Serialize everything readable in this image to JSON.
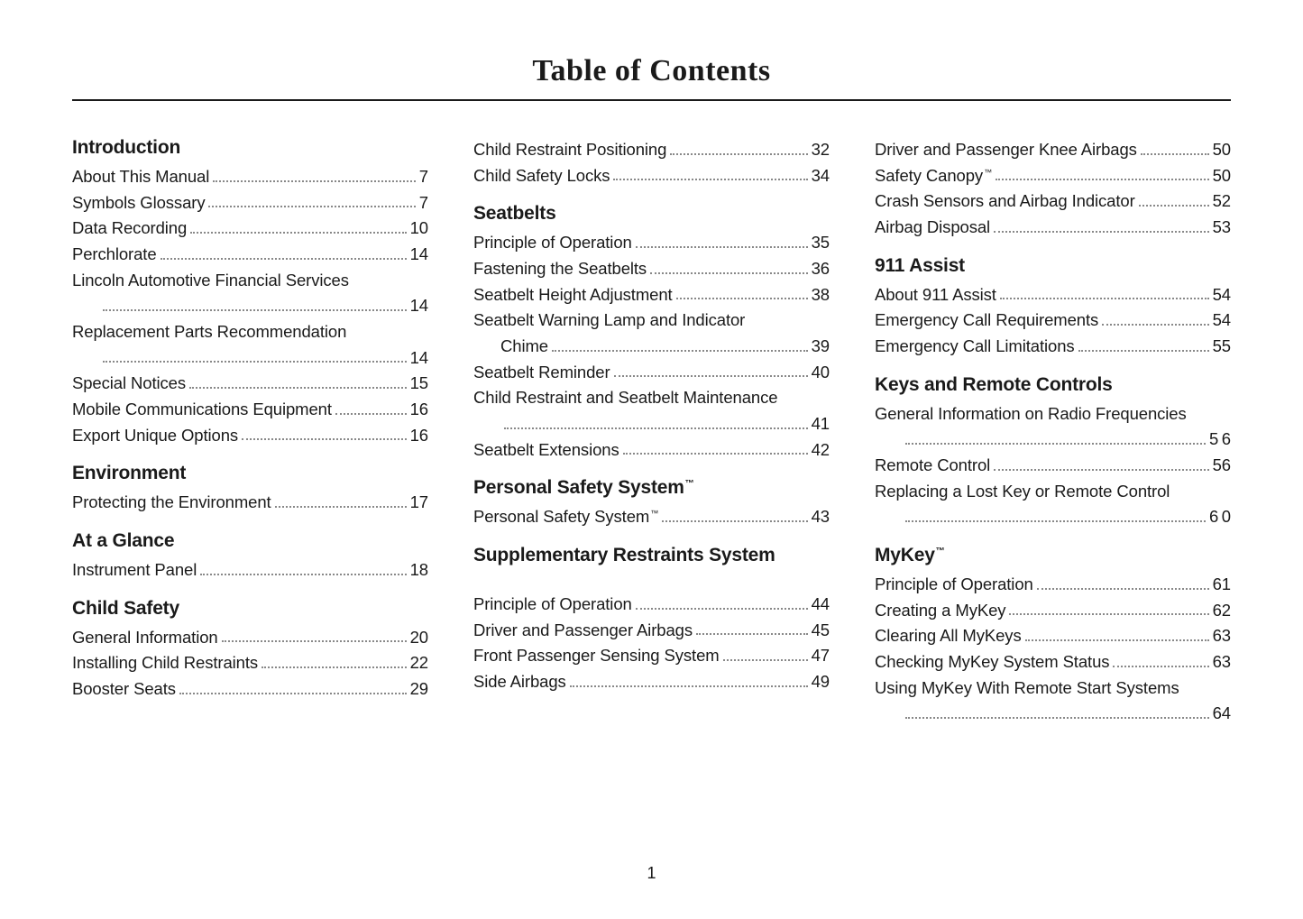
{
  "page_title": "Table of Contents",
  "page_number": "1",
  "columns": [
    {
      "sections": [
        {
          "title": "Introduction",
          "tm": false,
          "first": true,
          "entries": [
            {
              "label": "About This Manual",
              "page": "7"
            },
            {
              "label": "Symbols Glossary",
              "page": "7"
            },
            {
              "label": "Data Recording",
              "page": "10"
            },
            {
              "label": "Perchlorate",
              "page": "14"
            },
            {
              "label": "Lincoln Automotive Financial Services",
              "page": "14",
              "wrap": true
            },
            {
              "label": "Replacement Parts Recommendation",
              "page": "14",
              "wrap": true
            },
            {
              "label": "Special Notices",
              "page": "15"
            },
            {
              "label": "Mobile Communications Equipment",
              "page": "16"
            },
            {
              "label": "Export Unique Options",
              "page": "16"
            }
          ]
        },
        {
          "title": "Environment",
          "tm": false,
          "entries": [
            {
              "label": "Protecting the Environment",
              "page": "17"
            }
          ]
        },
        {
          "title": "At a Glance",
          "tm": false,
          "entries": [
            {
              "label": "Instrument Panel",
              "page": "18"
            }
          ]
        },
        {
          "title": "Child Safety",
          "tm": false,
          "entries": [
            {
              "label": "General Information",
              "page": "20"
            },
            {
              "label": "Installing Child Restraints",
              "page": "22"
            },
            {
              "label": "Booster Seats",
              "page": "29"
            }
          ]
        }
      ]
    },
    {
      "sections": [
        {
          "title": "",
          "tm": false,
          "first": true,
          "continuation": true,
          "entries": [
            {
              "label": "Child Restraint Positioning",
              "page": "32"
            },
            {
              "label": "Child Safety Locks",
              "page": "34"
            }
          ]
        },
        {
          "title": "Seatbelts",
          "tm": false,
          "entries": [
            {
              "label": "Principle of Operation",
              "page": "35"
            },
            {
              "label": "Fastening the Seatbelts",
              "page": "36"
            },
            {
              "label": "Seatbelt Height Adjustment",
              "page": "38"
            },
            {
              "label": "Seatbelt Warning Lamp and Indicator Chime",
              "page": "39",
              "wrap": true,
              "break_after": "Indicator"
            },
            {
              "label": "Seatbelt Reminder",
              "page": "40"
            },
            {
              "label": "Child Restraint and Seatbelt Maintenance",
              "page": "41",
              "wrap": true
            },
            {
              "label": "Seatbelt Extensions",
              "page": "42"
            }
          ]
        },
        {
          "title": "Personal Safety System",
          "tm": true,
          "entries": [
            {
              "label": "Personal Safety System",
              "label_tm": true,
              "page": "43"
            }
          ]
        },
        {
          "title": "Supplementary Restraints System",
          "tm": false,
          "gap_after_title": true,
          "entries": [
            {
              "label": "Principle of Operation",
              "page": "44"
            },
            {
              "label": "Driver and Passenger Airbags",
              "page": "45"
            },
            {
              "label": "Front Passenger Sensing System",
              "page": "47"
            },
            {
              "label": "Side Airbags",
              "page": "49"
            }
          ]
        }
      ]
    },
    {
      "sections": [
        {
          "title": "",
          "tm": false,
          "first": true,
          "continuation": true,
          "entries": [
            {
              "label": "Driver and Passenger Knee Airbags",
              "page": "50"
            },
            {
              "label": "Safety Canopy",
              "label_tm": true,
              "page": "50"
            },
            {
              "label": "Crash Sensors and Airbag Indicator",
              "page": "52"
            },
            {
              "label": "Airbag Disposal",
              "page": "53"
            }
          ]
        },
        {
          "title": "911 Assist",
          "tm": false,
          "entries": [
            {
              "label": "About 911 Assist",
              "page": "54"
            },
            {
              "label": "Emergency Call Requirements",
              "page": "54"
            },
            {
              "label": "Emergency Call Limitations",
              "page": "55"
            }
          ]
        },
        {
          "title": "Keys and Remote Controls",
          "tm": false,
          "entries": [
            {
              "label": "General Information on Radio Frequencies",
              "page": "56",
              "wrap": true,
              "spaced_page": true
            },
            {
              "label": "Remote Control",
              "page": "56"
            },
            {
              "label": "Replacing a Lost Key or Remote Control",
              "page": "60",
              "wrap": true,
              "spaced_page": true
            }
          ]
        },
        {
          "title": "MyKey",
          "tm": true,
          "entries": [
            {
              "label": "Principle of Operation",
              "page": "61"
            },
            {
              "label": "Creating a MyKey",
              "page": "62"
            },
            {
              "label": "Clearing All MyKeys",
              "page": "63"
            },
            {
              "label": "Checking MyKey System Status",
              "page": "63"
            },
            {
              "label": "Using MyKey With Remote Start Systems",
              "page": "64",
              "wrap": true
            }
          ]
        }
      ]
    }
  ]
}
